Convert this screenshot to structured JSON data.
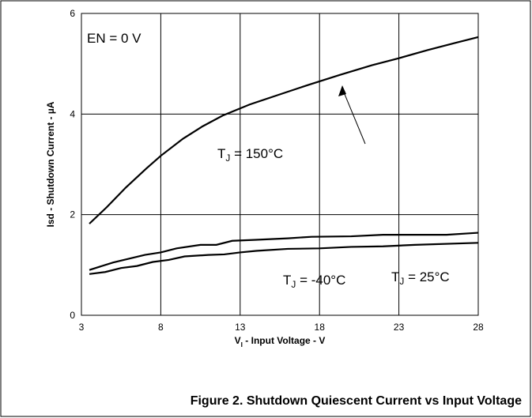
{
  "chart_data": {
    "type": "line",
    "caption": "Figure 2. Shutdown Quiescent Current vs Input Voltage",
    "xlabel": {
      "base": "V",
      "sub": "I",
      "text": " - Input Voltage - V"
    },
    "ylabel": "Isd - Shutdown Current - µA",
    "annotation": "EN = 0 V",
    "xlim": [
      3,
      28
    ],
    "xticks": [
      3,
      8,
      13,
      18,
      23,
      28
    ],
    "ylim": [
      0,
      6
    ],
    "yticks": [
      0,
      2,
      4,
      6
    ],
    "grid": true,
    "series": [
      {
        "name": {
          "base": "T",
          "sub": "J",
          "text": " = 150°C"
        },
        "color": "#000000",
        "x": [
          3.5,
          4.6,
          5.8,
          7.1,
          8.0,
          9.4,
          10.6,
          11.9,
          13.6,
          15.4,
          17.3,
          19.3,
          21.3,
          23.0,
          24.8,
          26.5,
          28.0
        ],
        "values": [
          1.82,
          2.15,
          2.54,
          2.92,
          3.17,
          3.51,
          3.75,
          3.97,
          4.19,
          4.38,
          4.58,
          4.78,
          4.97,
          5.11,
          5.27,
          5.41,
          5.53
        ]
      },
      {
        "name": {
          "base": "T",
          "sub": "J",
          "text": " = 25°C"
        },
        "color": "#000000",
        "x": [
          3.5,
          5,
          7,
          8,
          9,
          10.5,
          11.5,
          12.5,
          14,
          16,
          17.5,
          20,
          22,
          26,
          28
        ],
        "values": [
          0.9,
          1.05,
          1.2,
          1.25,
          1.33,
          1.4,
          1.4,
          1.48,
          1.5,
          1.53,
          1.56,
          1.57,
          1.6,
          1.6,
          1.64
        ]
      },
      {
        "name": {
          "base": "T",
          "sub": "J",
          "text": " = -40°C"
        },
        "color": "#000000",
        "x": [
          3.5,
          4.5,
          5.5,
          6.5,
          7.5,
          8.5,
          9.5,
          11,
          12,
          13,
          14,
          16,
          18,
          20,
          22,
          24,
          28
        ],
        "values": [
          0.82,
          0.86,
          0.94,
          0.98,
          1.06,
          1.1,
          1.17,
          1.2,
          1.21,
          1.25,
          1.28,
          1.32,
          1.33,
          1.36,
          1.37,
          1.4,
          1.44
        ]
      }
    ]
  }
}
